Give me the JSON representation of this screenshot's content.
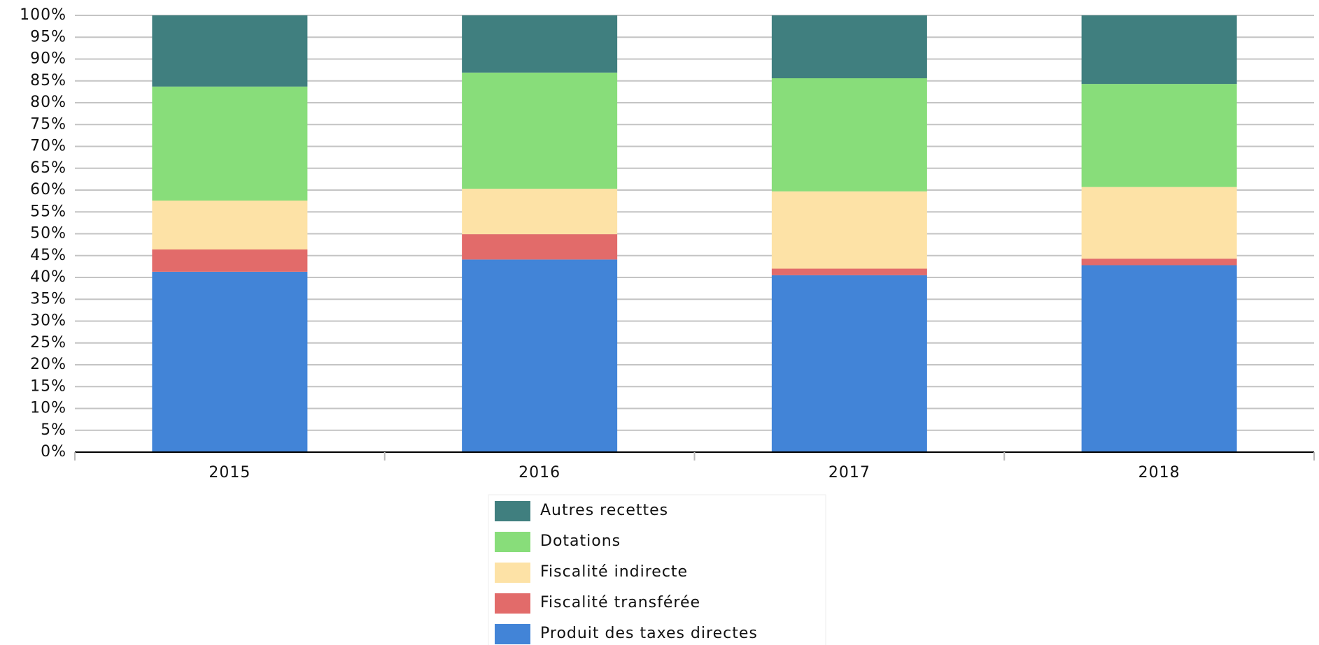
{
  "chart_data": {
    "type": "stacked_bar",
    "categories": [
      "2015",
      "2016",
      "2017",
      "2018"
    ],
    "series": [
      {
        "name": "Produit des taxes directes",
        "color": "#4284d7",
        "values": [
          41.3,
          44.1,
          40.5,
          42.8
        ]
      },
      {
        "name": "Fiscalité transférée",
        "color": "#e26b6a",
        "values": [
          5.1,
          5.8,
          1.5,
          1.5
        ]
      },
      {
        "name": "Fiscalité indirecte",
        "color": "#fde2a6",
        "values": [
          11.2,
          10.4,
          17.7,
          16.4
        ]
      },
      {
        "name": "Dotations",
        "color": "#88dd7a",
        "values": [
          26.1,
          26.6,
          25.9,
          23.6
        ]
      },
      {
        "name": "Autres recettes",
        "color": "#407f7f",
        "values": [
          16.3,
          13.1,
          14.4,
          15.7
        ]
      }
    ],
    "ylim": [
      0,
      100
    ],
    "yticks": [
      {
        "value": 0,
        "label": "0%"
      },
      {
        "value": 5,
        "label": "5%"
      },
      {
        "value": 10,
        "label": "10%"
      },
      {
        "value": 15,
        "label": "15%"
      },
      {
        "value": 20,
        "label": "20%"
      },
      {
        "value": 25,
        "label": "25%"
      },
      {
        "value": 30,
        "label": "30%"
      },
      {
        "value": 35,
        "label": "35%"
      },
      {
        "value": 40,
        "label": "40%"
      },
      {
        "value": 45,
        "label": "45%"
      },
      {
        "value": 50,
        "label": "50%"
      },
      {
        "value": 55,
        "label": "55%"
      },
      {
        "value": 60,
        "label": "60%"
      },
      {
        "value": 65,
        "label": "65%"
      },
      {
        "value": 70,
        "label": "70%"
      },
      {
        "value": 75,
        "label": "75%"
      },
      {
        "value": 80,
        "label": "80%"
      },
      {
        "value": 85,
        "label": "85%"
      },
      {
        "value": 90,
        "label": "90%"
      },
      {
        "value": 95,
        "label": "95%"
      },
      {
        "value": 100,
        "label": "100%"
      }
    ],
    "grid": true,
    "legend": "bottom"
  }
}
